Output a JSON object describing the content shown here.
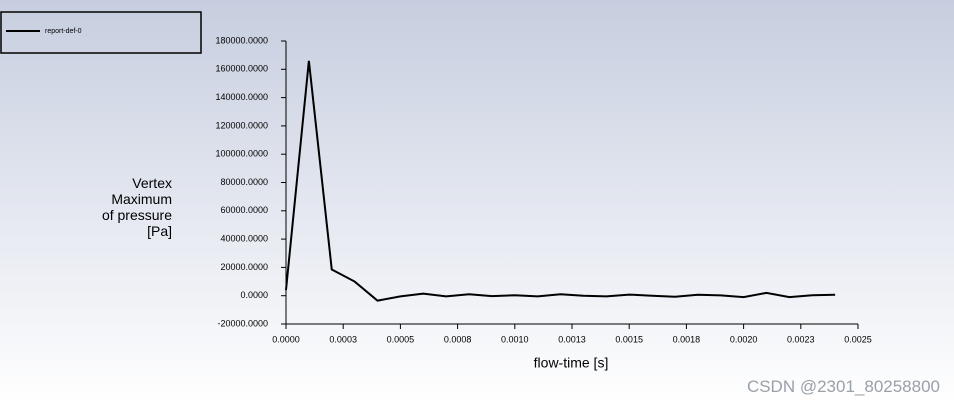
{
  "chart_data": {
    "type": "line",
    "x_label": "flow-time [s]",
    "y_label": "Vertex Maximum of pressure [Pa]",
    "x": [
      0,
      0.0001,
      0.0002,
      0.0003,
      0.0004,
      0.0005,
      0.0006,
      0.0007,
      0.0008,
      0.0009,
      0.001,
      0.0011,
      0.0012,
      0.0013,
      0.0014,
      0.0015,
      0.0016,
      0.0017,
      0.0018,
      0.0019,
      0.002,
      0.0021,
      0.0022,
      0.0023,
      0.0024
    ],
    "series": [
      {
        "name": "report-def-0",
        "color": "#000000",
        "values": [
          4000,
          166000,
          18500,
          10000,
          -3500,
          -500,
          1500,
          -500,
          1000,
          -300,
          300,
          -500,
          1000,
          0,
          -500,
          800,
          0,
          -700,
          700,
          200,
          -1000,
          2000,
          -1000,
          300,
          700
        ]
      }
    ],
    "xlim": [
      0,
      0.0025
    ],
    "xticks": [
      {
        "value": 0,
        "label": "0.0000"
      },
      {
        "value": 0.00025,
        "label": "0.0003"
      },
      0.0005,
      {
        "value": 0.00075,
        "label": "0.0008"
      },
      {
        "value": 0.001,
        "label": "0.0010"
      },
      {
        "value": 0.00125,
        "label": "0.0013"
      },
      0.0015,
      {
        "value": 0.00175,
        "label": "0.0018"
      },
      {
        "value": 0.002,
        "label": "0.0020"
      },
      {
        "value": 0.00225,
        "label": "0.0023"
      },
      {
        "value": 0.0025,
        "label": "0.0025"
      }
    ],
    "ylim": [
      -20000,
      180000
    ],
    "yticks": [
      {
        "value": -20000,
        "label": "-20000.0000"
      },
      {
        "value": 0,
        "label": "0.0000"
      },
      {
        "value": 20000,
        "label": "20000.0000"
      },
      {
        "value": 40000,
        "label": "40000.0000"
      },
      {
        "value": 60000,
        "label": "60000.0000"
      },
      {
        "value": 80000,
        "label": "80000.0000"
      },
      {
        "value": 100000,
        "label": "100000.0000"
      },
      {
        "value": 120000,
        "label": "120000.0000"
      },
      {
        "value": 140000,
        "label": "140000.0000"
      },
      {
        "value": 160000,
        "label": "160000.0000"
      },
      {
        "value": 180000,
        "label": "180000.0000"
      }
    ],
    "grid": false
  },
  "watermark": "CSDN @2301_80258800"
}
